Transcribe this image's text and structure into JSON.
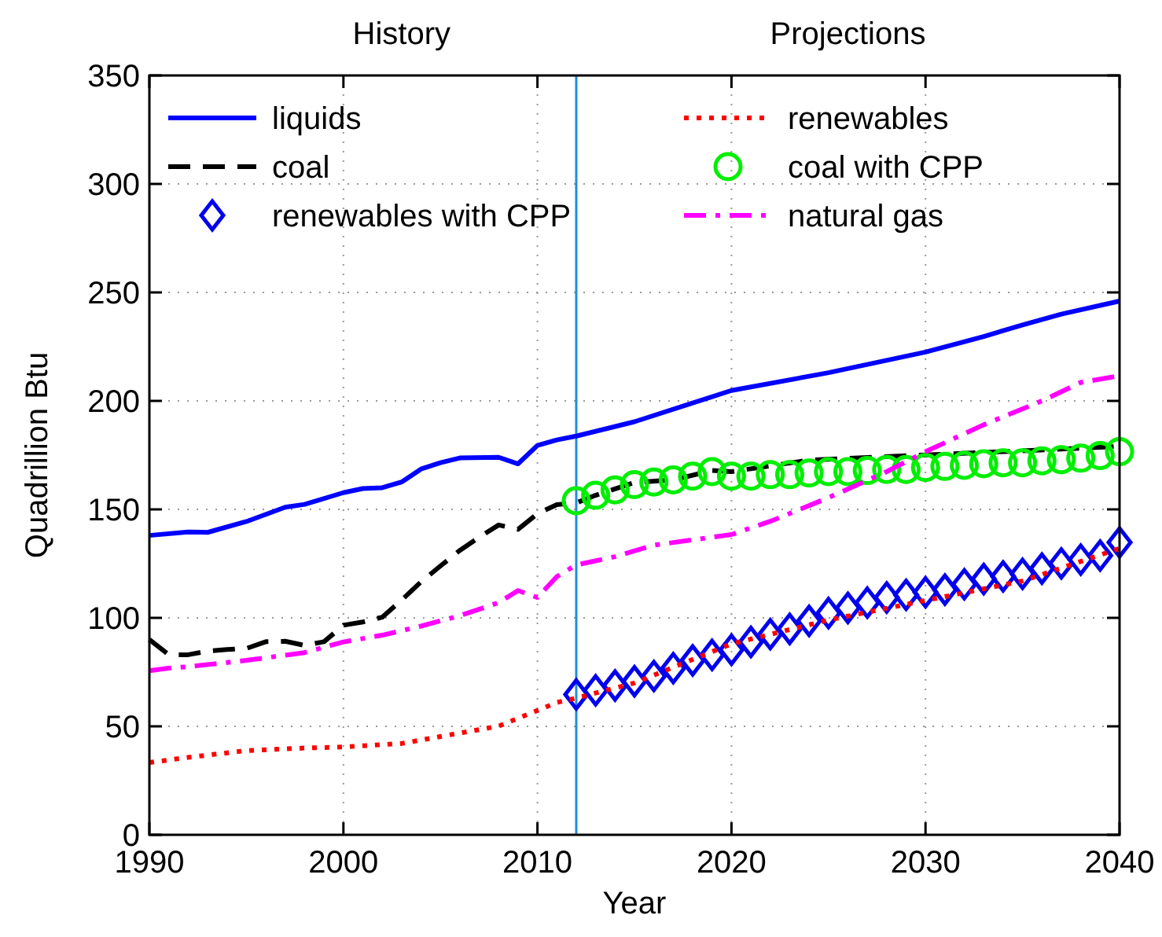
{
  "chart_data": {
    "type": "line",
    "xlabel": "Year",
    "ylabel": "Quadrillion Btu",
    "annotations": [
      "History",
      "Projections"
    ],
    "xlim": [
      1990,
      2040
    ],
    "xticks": [
      1990,
      2000,
      2010,
      2020,
      2030,
      2040
    ],
    "ylim": [
      0,
      350
    ],
    "yticks": [
      0,
      50,
      100,
      150,
      200,
      250,
      300,
      350
    ],
    "grid": true,
    "legend": "top",
    "ref_lines": [
      {
        "axis": "x",
        "value": 2012,
        "color": "#1f8fd6"
      }
    ],
    "series": [
      {
        "name": "liquids",
        "color": "#0000ff",
        "line_style": "solid",
        "x": [
          1990,
          1992,
          1993,
          1995,
          1997,
          1998,
          2000,
          2001,
          2002,
          2003,
          2004,
          2005,
          2006,
          2008,
          2009,
          2010,
          2011,
          2012,
          2015,
          2020,
          2025,
          2030,
          2033,
          2035,
          2037,
          2040
        ],
        "values": [
          138,
          139.6,
          139.4,
          144.4,
          151,
          152.3,
          157.7,
          159.6,
          160,
          162.6,
          168.6,
          171.5,
          173.7,
          174,
          171,
          179.5,
          182,
          183.8,
          190.4,
          204.8,
          213,
          222.5,
          229.7,
          235,
          240,
          246
        ]
      },
      {
        "name": "coal",
        "color": "#000000",
        "line_style": "dashed",
        "x": [
          1990,
          1991,
          1992,
          1993,
          1994,
          1995,
          1996,
          1997,
          1998,
          1999,
          2000,
          2001,
          2002,
          2003,
          2004,
          2005,
          2006,
          2007,
          2008,
          2009,
          2010,
          2011,
          2012,
          2013,
          2015,
          2017,
          2019,
          2020,
          2024,
          2030,
          2035,
          2040
        ],
        "values": [
          90,
          83,
          83,
          84.7,
          85.4,
          85.9,
          89,
          89.2,
          87.3,
          89,
          96.6,
          98.1,
          100.3,
          108.2,
          116.6,
          123.9,
          131.1,
          137.2,
          142.8,
          140.8,
          148,
          152.2,
          153,
          156.5,
          162.4,
          163.6,
          167.9,
          167.4,
          172.7,
          175.1,
          177,
          179
        ]
      },
      {
        "name": "renewables with CPP",
        "type": "scatter",
        "marker": "diamond",
        "color": "#0000ee",
        "x": [
          2012,
          2013,
          2014,
          2015,
          2016,
          2017,
          2018,
          2019,
          2020,
          2021,
          2022,
          2023,
          2024,
          2025,
          2026,
          2027,
          2028,
          2029,
          2030,
          2031,
          2032,
          2033,
          2034,
          2035,
          2036,
          2037,
          2038,
          2039,
          2040
        ],
        "values": [
          64.7,
          66.6,
          68.8,
          70.8,
          73.2,
          76.8,
          80.4,
          82.9,
          85.3,
          88.9,
          92.5,
          94.9,
          98.6,
          102.2,
          104.6,
          107,
          109.4,
          110.6,
          111.8,
          113,
          115.5,
          117.9,
          119.1,
          120.3,
          122.7,
          125.1,
          126.8,
          128.7,
          134.8
        ]
      },
      {
        "name": "renewables",
        "color": "#ff0000",
        "line_style": "dotted",
        "x": [
          1990,
          1992,
          1995,
          1998,
          2000,
          2003,
          2005,
          2008,
          2010,
          2011,
          2012,
          2015,
          2020,
          2025,
          2030,
          2035,
          2040
        ],
        "values": [
          33.3,
          35.7,
          38.8,
          40,
          40.5,
          42.1,
          45.3,
          50.1,
          57.3,
          61,
          63,
          70,
          88,
          99,
          108,
          117,
          132
        ]
      },
      {
        "name": "coal with CPP",
        "type": "scatter",
        "marker": "circle",
        "color": "#00ee00",
        "x": [
          2012,
          2013,
          2014,
          2015,
          2016,
          2017,
          2018,
          2019,
          2020,
          2021,
          2022,
          2023,
          2024,
          2025,
          2026,
          2027,
          2028,
          2029,
          2030,
          2031,
          2032,
          2033,
          2034,
          2035,
          2036,
          2037,
          2038,
          2039,
          2040
        ],
        "values": [
          154,
          156.5,
          159,
          161.4,
          162.6,
          163.6,
          165.3,
          167.4,
          165.3,
          165.3,
          166,
          166,
          166.8,
          167.4,
          167.4,
          167.9,
          168.4,
          168.4,
          169.3,
          169.8,
          170.3,
          171,
          171.5,
          171.5,
          172.4,
          172.9,
          173.6,
          174.8,
          176.6
        ]
      },
      {
        "name": "natural gas",
        "color": "#ff00ff",
        "line_style": "dashdot",
        "x": [
          1990,
          1991,
          1992,
          1995,
          1998,
          2000,
          2002,
          2004,
          2006,
          2008,
          2009,
          2010,
          2011,
          2012,
          2014,
          2016,
          2020,
          2022,
          2025,
          2028,
          2030,
          2033,
          2036,
          2038,
          2040
        ],
        "values": [
          75.6,
          76.8,
          77.5,
          80.4,
          84,
          88.9,
          92,
          96.2,
          101,
          107,
          112.6,
          109.4,
          119,
          124.4,
          128.2,
          133.5,
          138.4,
          144.5,
          155.4,
          167.4,
          176.6,
          189,
          200,
          208.5,
          211.6
        ]
      }
    ]
  }
}
